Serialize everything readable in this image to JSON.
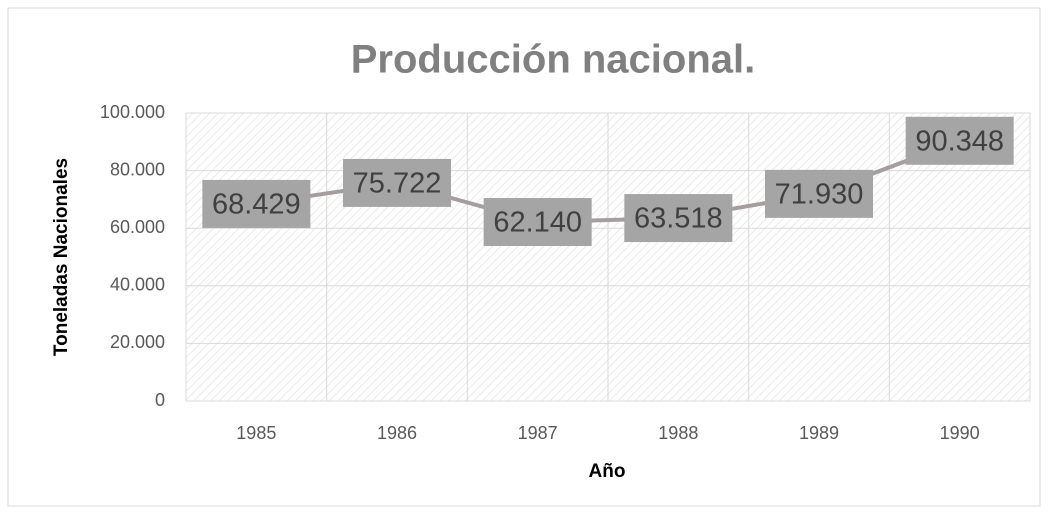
{
  "chart_data": {
    "type": "line",
    "title": "Producción nacional.",
    "x_label": "Año",
    "y_label": "Toneladas Nacionales",
    "categories": [
      "1985",
      "1986",
      "1987",
      "1988",
      "1989",
      "1990"
    ],
    "values": [
      68429,
      75722,
      62140,
      63518,
      71930,
      90348
    ],
    "value_labels": [
      "68.429",
      "75.722",
      "62.140",
      "63.518",
      "71.930",
      "90.348"
    ],
    "color": "#a69e9e",
    "ylim": [
      0,
      100000
    ],
    "yticks": [
      0,
      {
        "value": 20000,
        "label": "20.000"
      },
      {
        "value": 40000,
        "label": "40.000"
      },
      {
        "value": 60000,
        "label": "60.000"
      },
      {
        "value": 80000,
        "label": "80.000"
      },
      {
        "value": 100000,
        "label": "100.000"
      }
    ],
    "grid": true
  }
}
